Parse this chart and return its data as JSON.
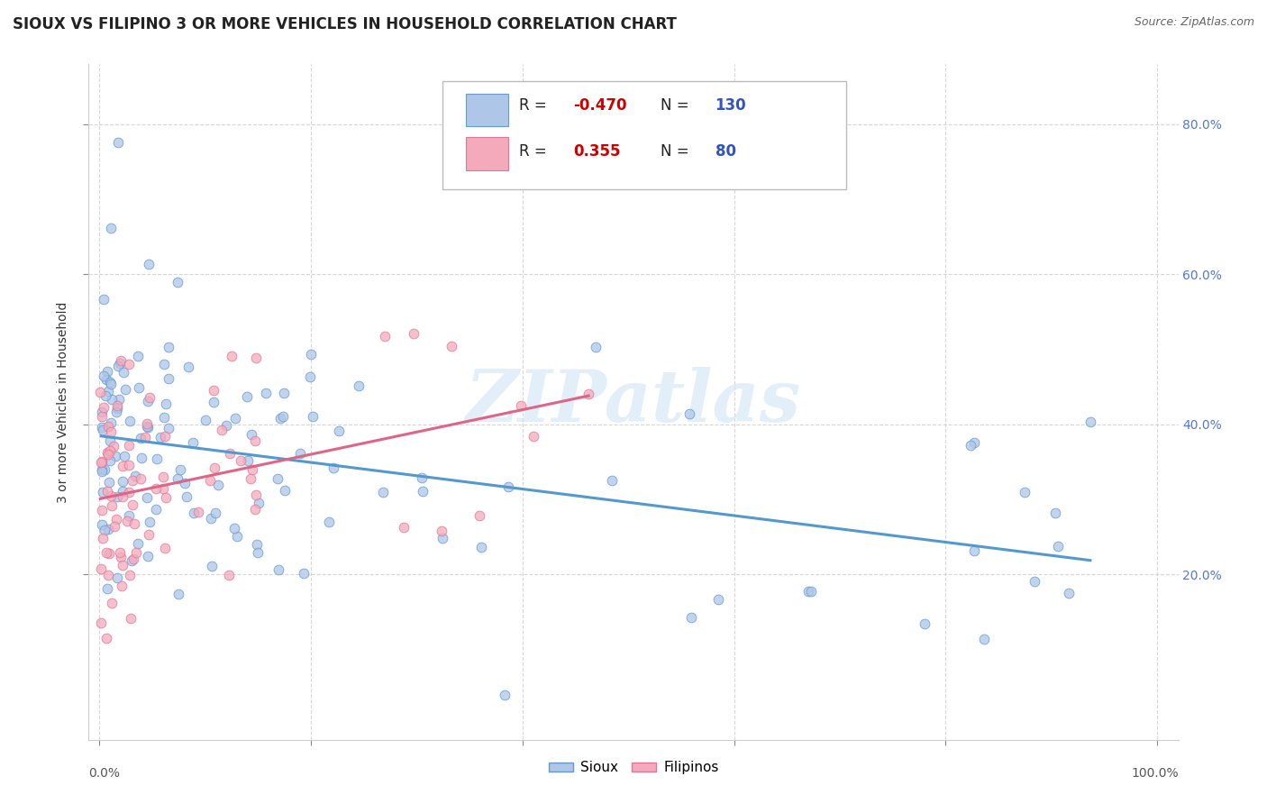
{
  "title": "SIOUX VS FILIPINO 3 OR MORE VEHICLES IN HOUSEHOLD CORRELATION CHART",
  "source_text": "Source: ZipAtlas.com",
  "ylabel": "3 or more Vehicles in Household",
  "xlim": [
    -0.01,
    1.02
  ],
  "ylim": [
    -0.02,
    0.88
  ],
  "xtick_vals": [
    0.0,
    0.2,
    0.4,
    0.6,
    0.8,
    1.0
  ],
  "ytick_vals": [
    0.2,
    0.4,
    0.6,
    0.8
  ],
  "right_ytick_labels": [
    "20.0%",
    "40.0%",
    "60.0%",
    "80.0%"
  ],
  "bottom_xtick_labels_left": "0.0%",
  "bottom_xtick_labels_right": "100.0%",
  "sioux_color": "#aec6e8",
  "sioux_edge": "#6699cc",
  "filipino_color": "#f4aabb",
  "filipino_edge": "#dd7799",
  "trend_sioux_color": "#5599cc",
  "trend_filipino_color": "#dd6688",
  "sioux_R": -0.47,
  "sioux_N": 130,
  "filipino_R": 0.355,
  "filipino_N": 80,
  "watermark": "ZIPatlas",
  "legend_label_sioux": "Sioux",
  "legend_label_filipino": "Filipinos",
  "background_color": "#ffffff",
  "grid_color": "#cccccc",
  "title_fontsize": 12,
  "axis_label_fontsize": 10,
  "tick_fontsize": 10,
  "legend_r_color": "#cc0000",
  "legend_n_color": "#333333",
  "right_tick_color": "#5577cc",
  "scatter_size": 60,
  "scatter_alpha": 0.75
}
